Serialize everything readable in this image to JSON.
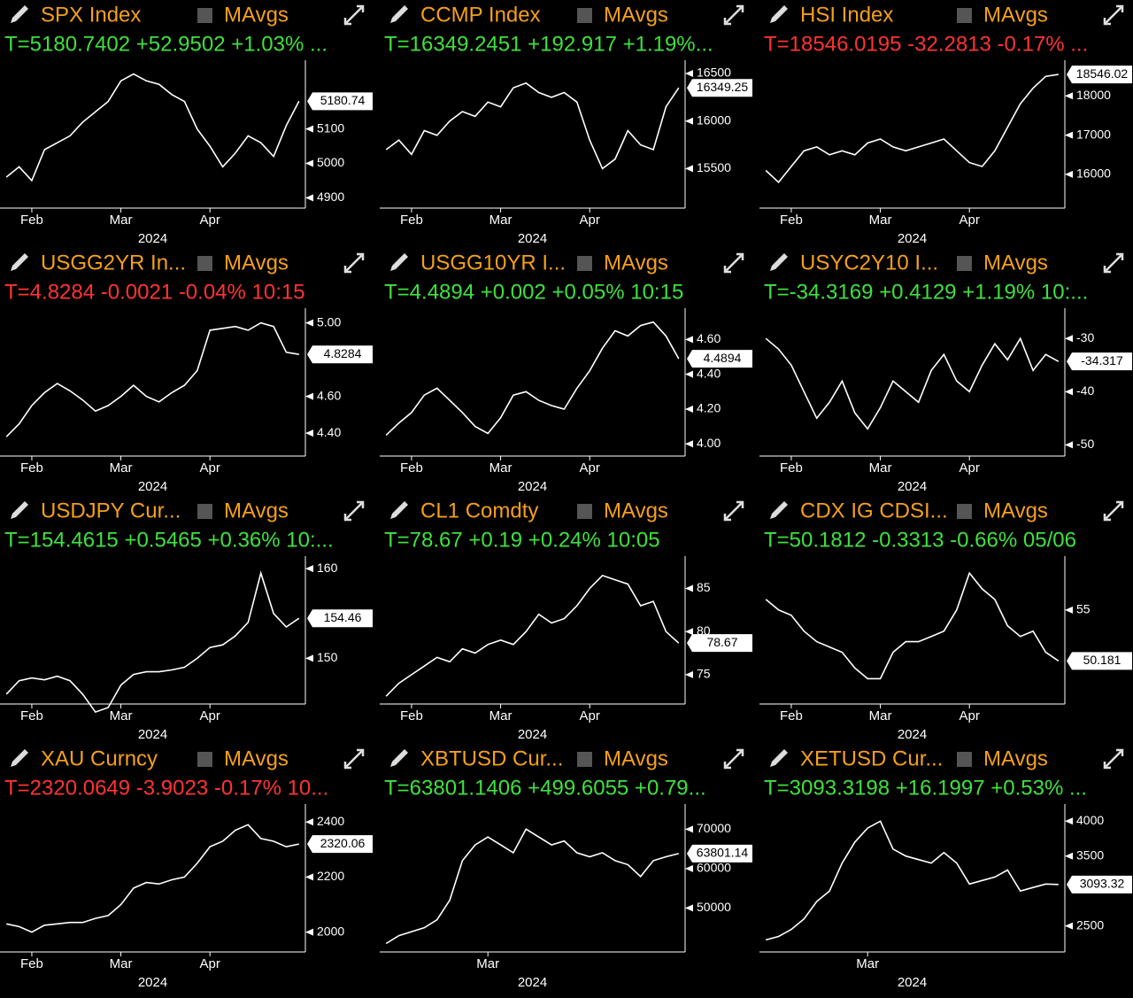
{
  "chart_data": [
    {
      "type": "line",
      "title": "SPX Index",
      "toggle_label": "MAvgs",
      "subtitle": "T=5180.7402 +52.9502 +1.03% ...",
      "subtitle_color": "#3fe03f",
      "color": "#ffffff",
      "categories": [
        null,
        null,
        "Feb",
        null,
        null,
        null,
        null,
        null,
        null,
        "Mar",
        null,
        null,
        null,
        null,
        null,
        null,
        "Apr",
        null,
        null,
        null,
        null,
        null,
        null,
        null
      ],
      "values": [
        4960,
        4990,
        4950,
        5040,
        5060,
        5080,
        5120,
        5150,
        5180,
        5240,
        5260,
        5240,
        5230,
        5200,
        5180,
        5100,
        5050,
        4990,
        5030,
        5080,
        5060,
        5020,
        5110,
        5180.74
      ],
      "last_label": "5180.74",
      "xlabel": "2024",
      "ylim": [
        4870,
        5300
      ],
      "yticks": [
        4900,
        5000,
        5100
      ]
    },
    {
      "type": "line",
      "title": "CCMP Index",
      "toggle_label": "MAvgs",
      "subtitle": "T=16349.2451 +192.917 +1.19%...",
      "subtitle_color": "#3fe03f",
      "color": "#ffffff",
      "categories": [
        null,
        null,
        "Feb",
        null,
        null,
        null,
        null,
        null,
        null,
        "Mar",
        null,
        null,
        null,
        null,
        null,
        null,
        "Apr",
        null,
        null,
        null,
        null,
        null,
        null,
        null
      ],
      "values": [
        15700,
        15800,
        15650,
        15900,
        15850,
        16000,
        16100,
        16050,
        16200,
        16150,
        16350,
        16400,
        16300,
        16250,
        16300,
        16200,
        15800,
        15500,
        15600,
        15900,
        15750,
        15700,
        16150,
        16349.25
      ],
      "last_label": "16349.25",
      "xlabel": "2024",
      "ylim": [
        15085,
        16640
      ],
      "yticks": [
        15500,
        16000,
        16500
      ]
    },
    {
      "type": "line",
      "title": "HSI Index",
      "toggle_label": "MAvgs",
      "subtitle": "T=18546.0195 -32.2813 -0.17% ...",
      "subtitle_color": "#ff3333",
      "color": "#ffffff",
      "categories": [
        null,
        null,
        "Feb",
        null,
        null,
        null,
        null,
        null,
        null,
        "Mar",
        null,
        null,
        null,
        null,
        null,
        null,
        "Apr",
        null,
        null,
        null,
        null,
        null,
        null,
        null
      ],
      "values": [
        16100,
        15800,
        16200,
        16600,
        16700,
        16500,
        16600,
        16500,
        16800,
        16900,
        16700,
        16600,
        16700,
        16800,
        16900,
        16600,
        16300,
        16200,
        16600,
        17200,
        17800,
        18200,
        18500,
        18546.02
      ],
      "last_label": "18546.02",
      "xlabel": "2024",
      "ylim": [
        15140,
        18910
      ],
      "yticks": [
        16000,
        17000,
        18000
      ]
    },
    {
      "type": "line",
      "title": "USGG2YR In...",
      "toggle_label": "MAvgs",
      "subtitle": "T=4.8284 -0.0021 -0.04% 10:15",
      "subtitle_color": "#ff3333",
      "color": "#ffffff",
      "categories": [
        null,
        null,
        "Feb",
        null,
        null,
        null,
        null,
        null,
        null,
        "Mar",
        null,
        null,
        null,
        null,
        null,
        null,
        "Apr",
        null,
        null,
        null,
        null,
        null,
        null,
        null
      ],
      "values": [
        4.38,
        4.45,
        4.55,
        4.62,
        4.67,
        4.63,
        4.58,
        4.52,
        4.55,
        4.6,
        4.66,
        4.6,
        4.57,
        4.62,
        4.66,
        4.74,
        4.96,
        4.97,
        4.98,
        4.96,
        5.0,
        4.98,
        4.84,
        4.8284
      ],
      "last_label": "4.8284",
      "xlabel": "2024",
      "ylim": [
        4.275,
        5.08
      ],
      "yticks": [
        {
          "value": 4.4,
          "label": "4.40"
        },
        {
          "value": 4.6,
          "label": "4.60"
        },
        {
          "value": 5.0,
          "label": "5.00"
        }
      ]
    },
    {
      "type": "line",
      "title": "USGG10YR I...",
      "toggle_label": "MAvgs",
      "subtitle": "T=4.4894 +0.002 +0.05% 10:15",
      "subtitle_color": "#3fe03f",
      "color": "#ffffff",
      "categories": [
        null,
        null,
        "Feb",
        null,
        null,
        null,
        null,
        null,
        null,
        "Mar",
        null,
        null,
        null,
        null,
        null,
        null,
        "Apr",
        null,
        null,
        null,
        null,
        null,
        null,
        null
      ],
      "values": [
        4.05,
        4.12,
        4.18,
        4.28,
        4.32,
        4.25,
        4.18,
        4.1,
        4.06,
        4.15,
        4.28,
        4.3,
        4.25,
        4.22,
        4.2,
        4.32,
        4.42,
        4.55,
        4.65,
        4.62,
        4.68,
        4.7,
        4.62,
        4.4894
      ],
      "last_label": "4.4894",
      "xlabel": "2024",
      "ylim": [
        3.93,
        4.78
      ],
      "yticks": [
        {
          "value": 4.0,
          "label": "4.00"
        },
        {
          "value": 4.2,
          "label": "4.20"
        },
        {
          "value": 4.4,
          "label": "4.40"
        },
        {
          "value": 4.6,
          "label": "4.60"
        }
      ]
    },
    {
      "type": "line",
      "title": "USYC2Y10 I...",
      "toggle_label": "MAvgs",
      "subtitle": "T=-34.3169 +0.4129 +1.19% 10:...",
      "subtitle_color": "#3fe03f",
      "color": "#ffffff",
      "categories": [
        null,
        null,
        "Feb",
        null,
        null,
        null,
        null,
        null,
        null,
        "Mar",
        null,
        null,
        null,
        null,
        null,
        null,
        "Apr",
        null,
        null,
        null,
        null,
        null,
        null,
        null
      ],
      "values": [
        -30,
        -32,
        -35,
        -40,
        -45,
        -42,
        -38,
        -44,
        -47,
        -43,
        -38,
        -40,
        -42,
        -36,
        -33,
        -38,
        -40,
        -35,
        -31,
        -34,
        -30,
        -36,
        -33,
        -34.317
      ],
      "last_label": "-34.317",
      "xlabel": "2024",
      "ylim": [
        -52.1,
        -24.3
      ],
      "yticks": [
        -50,
        -40,
        -30
      ]
    },
    {
      "type": "line",
      "title": "USDJPY Cur...",
      "toggle_label": "MAvgs",
      "subtitle": "T=154.4615 +0.5465 +0.36% 10:...",
      "subtitle_color": "#3fe03f",
      "color": "#ffffff",
      "categories": [
        null,
        null,
        "Feb",
        null,
        null,
        null,
        null,
        null,
        null,
        "Mar",
        null,
        null,
        null,
        null,
        null,
        null,
        "Apr",
        null,
        null,
        null,
        null,
        null,
        null,
        null
      ],
      "values": [
        146,
        147.5,
        147.8,
        147.6,
        148,
        147.5,
        146,
        144,
        144.5,
        147,
        148.2,
        148.5,
        148.5,
        148.7,
        149,
        150,
        151.2,
        151.5,
        152.5,
        154,
        159.5,
        155,
        153.5,
        154.46
      ],
      "last_label": "154.46",
      "xlabel": "2024",
      "ylim": [
        144.9,
        161.4
      ],
      "yticks": [
        150,
        160
      ]
    },
    {
      "type": "line",
      "title": "CL1 Comdty",
      "toggle_label": "MAvgs",
      "subtitle": "T=78.67 +0.19 +0.24% 10:05",
      "subtitle_color": "#3fe03f",
      "color": "#ffffff",
      "categories": [
        null,
        null,
        "Feb",
        null,
        null,
        null,
        null,
        null,
        null,
        "Mar",
        null,
        null,
        null,
        null,
        null,
        null,
        "Apr",
        null,
        null,
        null,
        null,
        null,
        null,
        null
      ],
      "values": [
        72.5,
        74,
        75,
        76,
        77,
        76.5,
        78,
        77.5,
        78.5,
        79,
        78.5,
        80,
        82,
        81,
        81.5,
        83,
        85,
        86.5,
        86,
        85.5,
        83,
        83.5,
        80,
        78.67
      ],
      "last_label": "78.67",
      "xlabel": "2024",
      "ylim": [
        71.6,
        88.75
      ],
      "yticks": [
        75,
        80,
        85
      ]
    },
    {
      "type": "line",
      "title": "CDX IG CDSI...",
      "toggle_label": "MAvgs",
      "subtitle": "T=50.1812 -0.3313 -0.66% 05/06",
      "subtitle_color": "#3fe03f",
      "color": "#ffffff",
      "categories": [
        null,
        null,
        "Feb",
        null,
        null,
        null,
        null,
        null,
        null,
        "Mar",
        null,
        null,
        null,
        null,
        null,
        null,
        "Apr",
        null,
        null,
        null,
        null,
        null,
        null,
        null
      ],
      "values": [
        56,
        55,
        54.5,
        53,
        52,
        51.5,
        51,
        49.5,
        48.5,
        48.5,
        51,
        52,
        52,
        52.5,
        53,
        55,
        58.5,
        57,
        56,
        53.5,
        52.5,
        53,
        51,
        50.181
      ],
      "last_label": "50.181",
      "xlabel": "2024",
      "ylim": [
        46.1,
        60.1
      ],
      "yticks": [
        55
      ]
    },
    {
      "type": "line",
      "title": "XAU Curncy",
      "toggle_label": "MAvgs",
      "subtitle": "T=2320.0649 -3.9023 -0.17% 10...",
      "subtitle_color": "#ff3333",
      "color": "#ffffff",
      "categories": [
        null,
        null,
        "Feb",
        null,
        null,
        null,
        null,
        null,
        null,
        "Mar",
        null,
        null,
        null,
        null,
        null,
        null,
        "Apr",
        null,
        null,
        null,
        null,
        null,
        null,
        null
      ],
      "values": [
        2030,
        2020,
        2000,
        2025,
        2030,
        2035,
        2035,
        2050,
        2060,
        2100,
        2160,
        2180,
        2175,
        2190,
        2200,
        2250,
        2310,
        2330,
        2370,
        2390,
        2340,
        2330,
        2310,
        2320.06
      ],
      "last_label": "2320.06",
      "xlabel": "2024",
      "ylim": [
        1928,
        2465
      ],
      "yticks": [
        2000,
        2200,
        2400
      ]
    },
    {
      "type": "line",
      "title": "XBTUSD Cur...",
      "toggle_label": "MAvgs",
      "subtitle": "T=63801.1406 +499.6055 +0.79...",
      "subtitle_color": "#3fe03f",
      "color": "#ffffff",
      "categories": [
        null,
        null,
        null,
        null,
        null,
        null,
        null,
        null,
        "Mar",
        null,
        null,
        null,
        null,
        null,
        null,
        null,
        null,
        null,
        null,
        null,
        null,
        null,
        null,
        null
      ],
      "values": [
        41000,
        43000,
        44000,
        45000,
        47000,
        52000,
        62000,
        66000,
        68000,
        66000,
        64000,
        70000,
        68000,
        66000,
        67000,
        64000,
        63000,
        64000,
        62000,
        61000,
        58000,
        62000,
        63000,
        63801.14
      ],
      "last_label": "63801.14",
      "xlabel": "2024",
      "ylim": [
        38860,
        76360
      ],
      "yticks": [
        50000,
        60000,
        70000
      ]
    },
    {
      "type": "line",
      "title": "XETUSD Cur...",
      "toggle_label": "MAvgs",
      "subtitle": "T=3093.3198 +16.1997 +0.53% ...",
      "subtitle_color": "#3fe03f",
      "color": "#ffffff",
      "categories": [
        null,
        null,
        null,
        null,
        null,
        null,
        null,
        null,
        "Mar",
        null,
        null,
        null,
        null,
        null,
        null,
        null,
        null,
        null,
        null,
        null,
        null,
        null,
        null,
        null
      ],
      "values": [
        2300,
        2350,
        2450,
        2600,
        2850,
        3000,
        3400,
        3700,
        3900,
        4000,
        3600,
        3500,
        3450,
        3400,
        3550,
        3400,
        3100,
        3150,
        3200,
        3300,
        3000,
        3050,
        3100,
        3093.32
      ],
      "last_label": "3093.32",
      "xlabel": "2024",
      "ylim": [
        2128,
        4244
      ],
      "yticks": [
        2500,
        3500,
        4000
      ]
    }
  ]
}
